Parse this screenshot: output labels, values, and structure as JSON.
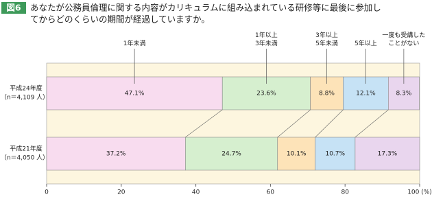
{
  "chart_data": {
    "type": "stacked-barh",
    "figure_label": "図6",
    "title": [
      "あなたが公務員倫理に関する内容がカリキュラムに組み込まれている研修等に最後に参加し",
      "てからどのくらいの期間が経過していますか。"
    ],
    "categories": [
      "平成24年度",
      "平成21年度"
    ],
    "category_notes": [
      "（n＝4,109 人）",
      "（n＝4,050 人）"
    ],
    "series": [
      {
        "name": "1年未満",
        "color": "#f8dcef",
        "values": [
          47.1,
          37.2
        ],
        "value_labels": [
          "47.1%",
          "37.2%"
        ]
      },
      {
        "name": "1年以上\n3年未満",
        "color": "#d6efcf",
        "values": [
          23.6,
          24.7
        ],
        "value_labels": [
          "23.6%",
          "24.7%"
        ]
      },
      {
        "name": "3年以上\n5年未満",
        "color": "#fde3b8",
        "values": [
          8.8,
          10.1
        ],
        "value_labels": [
          "8.8%",
          "10.1%"
        ]
      },
      {
        "name": "5年以上",
        "color": "#c6e2f5",
        "values": [
          12.1,
          10.7
        ],
        "value_labels": [
          "12.1%",
          "10.7%"
        ]
      },
      {
        "name": "一度も受講した\nことがない",
        "color": "#e9d6ee",
        "values": [
          8.3,
          17.3
        ],
        "value_labels": [
          "8.3%",
          "17.3%"
        ]
      }
    ],
    "xlim": [
      0,
      100
    ],
    "xticks": [
      0,
      20,
      40,
      60,
      80,
      {
        "value": 100,
        "label": "100 (%)"
      }
    ]
  }
}
